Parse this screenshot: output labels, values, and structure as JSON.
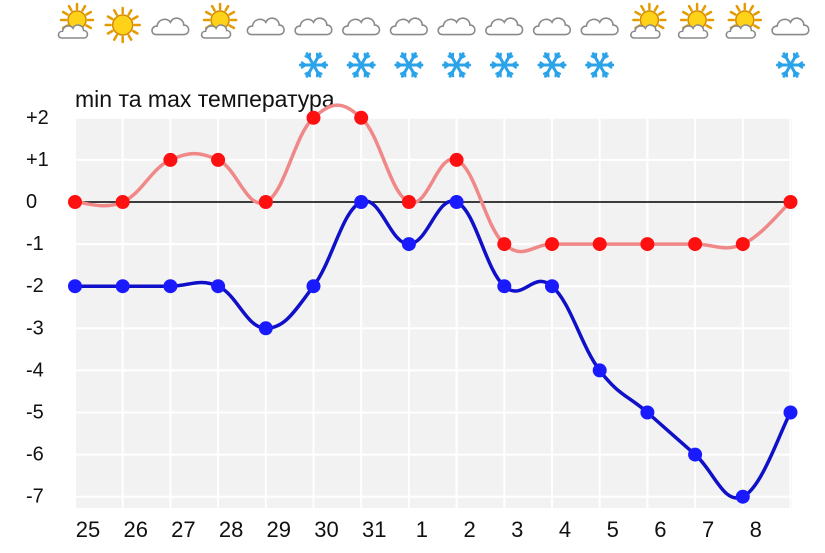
{
  "weather_icons": [
    {
      "sky": "sun-cloud-icon",
      "snow": false
    },
    {
      "sky": "sun-icon",
      "snow": false
    },
    {
      "sky": "cloud-icon",
      "snow": false
    },
    {
      "sky": "sun-cloud-icon",
      "snow": false
    },
    {
      "sky": "cloud-icon",
      "snow": false
    },
    {
      "sky": "cloud-icon",
      "snow": true
    },
    {
      "sky": "cloud-icon",
      "snow": true
    },
    {
      "sky": "cloud-icon",
      "snow": true
    },
    {
      "sky": "cloud-icon",
      "snow": true
    },
    {
      "sky": "cloud-icon",
      "snow": true
    },
    {
      "sky": "cloud-icon",
      "snow": true
    },
    {
      "sky": "cloud-icon",
      "snow": true
    },
    {
      "sky": "sun-cloud-icon",
      "snow": false
    },
    {
      "sky": "sun-cloud-icon",
      "snow": false
    },
    {
      "sky": "sun-cloud-icon",
      "snow": false
    },
    {
      "sky": "cloud-icon",
      "snow": true
    }
  ],
  "chart_data": {
    "type": "line",
    "title": "min та max температура",
    "categories": [
      "25",
      "26",
      "27",
      "28",
      "29",
      "30",
      "31",
      "1",
      "2",
      "3",
      "4",
      "5",
      "6",
      "7",
      "8",
      ""
    ],
    "series": [
      {
        "values": [
          0,
          0,
          1,
          1,
          0,
          2,
          2,
          0,
          1,
          -1,
          -1,
          -1,
          -1,
          -1,
          -1,
          0
        ],
        "color": "#f08888",
        "marker_color": "#ff1010"
      },
      {
        "values": [
          -2,
          -2,
          -2,
          -2,
          -3,
          -2,
          0,
          -1,
          0,
          -2,
          -2,
          -4,
          -5,
          -6,
          -7,
          -5
        ],
        "color": "#1010c8",
        "marker_color": "#1a1aff"
      }
    ],
    "yticks": [
      2,
      1,
      0,
      -1,
      -2,
      -3,
      -4,
      -5,
      -6,
      -7
    ],
    "ytick_labels": [
      "+2",
      "+1",
      "0",
      "-1",
      "-2",
      "-3",
      "-4",
      "-5",
      "-6",
      "-7"
    ],
    "ylim": [
      -7,
      2
    ],
    "grid": true,
    "background_color": "#f2f2f2",
    "grid_color": "#ffffff",
    "zero_line_color": "#000000"
  }
}
